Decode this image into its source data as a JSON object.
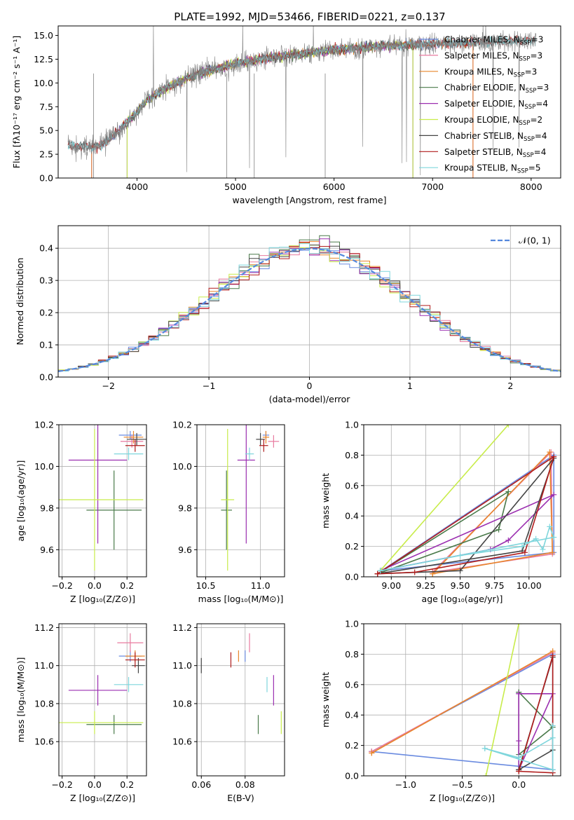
{
  "figure_title": "PLATE=1992, MJD=53466, FIBERID=0221, z=0.137",
  "colors": {
    "chabrier_miles": "#6a8be0",
    "salpeter_miles": "#e87a9f",
    "kroupa_miles": "#e8862c",
    "chabrier_elodie": "#4a7a4a",
    "salpeter_elodie": "#9b2fb0",
    "kroupa_elodie": "#c8ec4a",
    "chabrier_stelib": "#444444",
    "salpeter_stelib": "#b01c1c",
    "kroupa_stelib": "#7fd6dc",
    "data_spectrum": "#808080",
    "normal_curve": "#5588dd",
    "grid": "#b0b0b0"
  },
  "chart_data": [
    {
      "id": "spectrum",
      "type": "line",
      "xlabel": "wavelength [Angstrom, rest frame]",
      "ylabel": "Flux [fλ10⁻¹⁷ erg cm⁻² s⁻¹ A⁻¹]",
      "xlim": [
        3200,
        8300
      ],
      "ylim": [
        0,
        16
      ],
      "xticks": [
        4000,
        5000,
        6000,
        7000,
        8000
      ],
      "yticks": [
        0.0,
        2.5,
        5.0,
        7.5,
        10.0,
        12.5,
        15.0
      ],
      "grid": false,
      "legend_position": "top-right",
      "legend": [
        "Chabrier MILES, N_SSP=3",
        "Salpeter MILES, N_SSP=3",
        "Kroupa MILES, N_SSP=3",
        "Chabrier ELODIE, N_SSP=3",
        "Salpeter ELODIE, N_SSP=4",
        "Kroupa ELODIE, N_SSP=2",
        "Chabrier STELIB, N_SSP=4",
        "Salpeter STELIB, N_SSP=4",
        "Kroupa STELIB, N_SSP=5"
      ],
      "continuum": {
        "x": [
          3300,
          3600,
          3800,
          4000,
          4100,
          4300,
          4500,
          4700,
          5000,
          5300,
          5600,
          6000,
          6500,
          7000,
          7500,
          8000
        ],
        "y": [
          3.4,
          3.2,
          4.8,
          7.0,
          8.2,
          9.5,
          10.5,
          11.2,
          12.0,
          12.6,
          13.0,
          13.5,
          13.9,
          14.1,
          14.3,
          14.5
        ]
      }
    },
    {
      "id": "residual_histogram",
      "type": "area",
      "xlabel": "(data-model)/error",
      "ylabel": "Normed distribution",
      "xlim": [
        -2.5,
        2.5
      ],
      "ylim": [
        0,
        0.47
      ],
      "xticks": [
        -2,
        -1,
        0,
        1,
        2
      ],
      "yticks": [
        0.0,
        0.1,
        0.2,
        0.3,
        0.4
      ],
      "grid": true,
      "legend_position": "top-right",
      "legend": [
        "𝒩(0, 1)"
      ],
      "bin_width": 0.1
    },
    {
      "id": "age_vs_Z",
      "type": "scatter",
      "xlabel": "Z [log₁₀(Z/Z⊙)]",
      "ylabel": "age  [log₁₀(age/yr)]",
      "xlim": [
        -0.22,
        0.32
      ],
      "ylim": [
        9.47,
        10.2
      ],
      "xticks": [
        -0.2,
        0.0,
        0.2
      ],
      "yticks": [
        9.6,
        9.8,
        10.0,
        10.2
      ],
      "grid": true,
      "points": [
        {
          "s": "chabrier_miles",
          "x": 0.22,
          "xe": 0.07,
          "y": 10.15,
          "ye": 0.02
        },
        {
          "s": "salpeter_miles",
          "x": 0.23,
          "xe": 0.07,
          "y": 10.12,
          "ye": 0.03
        },
        {
          "s": "kroupa_miles",
          "x": 0.24,
          "xe": 0.06,
          "y": 10.14,
          "ye": 0.03
        },
        {
          "s": "chabrier_elodie",
          "x": 0.12,
          "xe": 0.17,
          "y": 9.79,
          "ye": 0.19
        },
        {
          "s": "salpeter_elodie",
          "x": 0.02,
          "xe": 0.18,
          "y": 10.03,
          "ye": 0.4
        },
        {
          "s": "kroupa_elodie",
          "x": 0.0,
          "xe": 0.3,
          "y": 9.84,
          "ye": 0.34
        },
        {
          "s": "chabrier_stelib",
          "x": 0.26,
          "xe": 0.06,
          "y": 10.13,
          "ye": 0.03
        },
        {
          "s": "salpeter_stelib",
          "x": 0.25,
          "xe": 0.06,
          "y": 10.1,
          "ye": 0.03
        },
        {
          "s": "kroupa_stelib",
          "x": 0.21,
          "xe": 0.09,
          "y": 10.06,
          "ye": 0.03
        }
      ]
    },
    {
      "id": "age_vs_mass",
      "type": "scatter",
      "xlabel": "mass [log₁₀(M/M⊙)]",
      "ylabel": "",
      "xlim": [
        10.42,
        11.22
      ],
      "ylim": [
        9.47,
        10.2
      ],
      "xticks": [
        10.5,
        11.0
      ],
      "yticks": [
        9.6,
        9.8,
        10.0,
        10.2
      ],
      "grid": true,
      "points": [
        {
          "s": "chabrier_miles",
          "x": 11.05,
          "xe": 0.03,
          "y": 10.15,
          "ye": 0.02
        },
        {
          "s": "salpeter_miles",
          "x": 11.12,
          "xe": 0.05,
          "y": 10.12,
          "ye": 0.03
        },
        {
          "s": "kroupa_miles",
          "x": 11.05,
          "xe": 0.03,
          "y": 10.14,
          "ye": 0.03
        },
        {
          "s": "chabrier_elodie",
          "x": 10.69,
          "xe": 0.05,
          "y": 9.79,
          "ye": 0.19
        },
        {
          "s": "salpeter_elodie",
          "x": 10.87,
          "xe": 0.08,
          "y": 10.03,
          "ye": 0.4
        },
        {
          "s": "kroupa_elodie",
          "x": 10.7,
          "xe": 0.06,
          "y": 9.84,
          "ye": 0.34
        },
        {
          "s": "chabrier_stelib",
          "x": 11.0,
          "xe": 0.04,
          "y": 10.13,
          "ye": 0.03
        },
        {
          "s": "salpeter_stelib",
          "x": 11.03,
          "xe": 0.04,
          "y": 10.1,
          "ye": 0.03
        },
        {
          "s": "kroupa_stelib",
          "x": 10.9,
          "xe": 0.04,
          "y": 10.06,
          "ye": 0.03
        }
      ]
    },
    {
      "id": "massweight_vs_age",
      "type": "line",
      "xlabel": "age  [log₁₀(age/yr)]",
      "ylabel": "mass weight",
      "xlim": [
        8.8,
        10.23
      ],
      "ylim": [
        0,
        1
      ],
      "xticks": [
        9.0,
        9.25,
        9.5,
        9.75,
        10.0
      ],
      "yticks": [
        0.0,
        0.2,
        0.4,
        0.6,
        0.8,
        1.0
      ],
      "grid": true,
      "series": [
        {
          "s": "chabrier_miles",
          "x": [
            8.93,
            10.18,
            10.18,
            8.93
          ],
          "y": [
            0.04,
            0.8,
            0.16,
            0.04
          ]
        },
        {
          "s": "salpeter_miles",
          "x": [
            9.3,
            10.16,
            10.17,
            9.3
          ],
          "y": [
            0.03,
            0.82,
            0.15,
            0.03
          ]
        },
        {
          "s": "kroupa_miles",
          "x": [
            9.3,
            10.15,
            10.17,
            9.3
          ],
          "y": [
            0.02,
            0.82,
            0.16,
            0.02
          ]
        },
        {
          "s": "chabrier_elodie",
          "x": [
            8.9,
            9.78,
            9.85,
            8.9
          ],
          "y": [
            0.02,
            0.31,
            0.56,
            0.02
          ]
        },
        {
          "s": "salpeter_elodie",
          "x": [
            8.92,
            9.72,
            9.85,
            10.18,
            8.92
          ],
          "y": [
            0.04,
            0.18,
            0.24,
            0.54,
            0.04
          ]
        },
        {
          "s": "kroupa_elodie",
          "x": [
            8.92,
            9.85,
            8.92
          ],
          "y": [
            0.04,
            1.0,
            0.04
          ]
        },
        {
          "s": "chabrier_stelib",
          "x": [
            8.9,
            9.95,
            10.18,
            9.5,
            8.9
          ],
          "y": [
            0.02,
            0.17,
            0.78,
            0.04,
            0.02
          ]
        },
        {
          "s": "salpeter_stelib",
          "x": [
            8.9,
            9.17,
            9.97,
            10.18,
            8.9
          ],
          "y": [
            0.02,
            0.03,
            0.16,
            0.79,
            0.02
          ]
        },
        {
          "s": "kroupa_stelib",
          "x": [
            8.92,
            9.5,
            9.95,
            10.05,
            10.1,
            10.15,
            10.18,
            8.92
          ],
          "y": [
            0.04,
            0.14,
            0.2,
            0.25,
            0.18,
            0.33,
            0.26,
            0.04
          ]
        }
      ]
    },
    {
      "id": "mass_vs_Z",
      "type": "scatter",
      "xlabel": "Z [log₁₀(Z/Z⊙)]",
      "ylabel": "mass [log₁₀(M/M⊙)]",
      "xlim": [
        -0.22,
        0.32
      ],
      "ylim": [
        10.42,
        11.22
      ],
      "xticks": [
        -0.2,
        0.0,
        0.2
      ],
      "yticks": [
        10.6,
        10.8,
        11.0,
        11.2
      ],
      "grid": true,
      "points": [
        {
          "s": "chabrier_miles",
          "x": 0.22,
          "xe": 0.07,
          "y": 11.05,
          "ye": 0.03
        },
        {
          "s": "salpeter_miles",
          "x": 0.22,
          "xe": 0.08,
          "y": 11.12,
          "ye": 0.05
        },
        {
          "s": "kroupa_miles",
          "x": 0.25,
          "xe": 0.06,
          "y": 11.05,
          "ye": 0.03
        },
        {
          "s": "chabrier_elodie",
          "x": 0.12,
          "xe": 0.17,
          "y": 10.69,
          "ye": 0.05
        },
        {
          "s": "salpeter_elodie",
          "x": 0.02,
          "xe": 0.18,
          "y": 10.87,
          "ye": 0.08
        },
        {
          "s": "kroupa_elodie",
          "x": 0.0,
          "xe": 0.3,
          "y": 10.7,
          "ye": 0.06
        },
        {
          "s": "chabrier_stelib",
          "x": 0.27,
          "xe": 0.04,
          "y": 11.0,
          "ye": 0.04
        },
        {
          "s": "salpeter_stelib",
          "x": 0.25,
          "xe": 0.06,
          "y": 11.03,
          "ye": 0.04
        },
        {
          "s": "kroupa_stelib",
          "x": 0.21,
          "xe": 0.09,
          "y": 10.9,
          "ye": 0.04
        }
      ]
    },
    {
      "id": "mass_vs_ebv",
      "type": "scatter",
      "xlabel": "E(B-V)",
      "ylabel": "",
      "xlim": [
        0.058,
        0.098
      ],
      "ylim": [
        10.42,
        11.22
      ],
      "xticks": [
        0.06,
        0.08
      ],
      "yticks": [
        10.6,
        10.8,
        11.0,
        11.2
      ],
      "grid": true,
      "points": [
        {
          "s": "chabrier_miles",
          "x": 0.08,
          "xe": 0,
          "y": 11.05,
          "ye": 0.03
        },
        {
          "s": "salpeter_miles",
          "x": 0.082,
          "xe": 0,
          "y": 11.12,
          "ye": 0.05
        },
        {
          "s": "kroupa_miles",
          "x": 0.077,
          "xe": 0,
          "y": 11.05,
          "ye": 0.03
        },
        {
          "s": "chabrier_elodie",
          "x": 0.086,
          "xe": 0,
          "y": 10.69,
          "ye": 0.05
        },
        {
          "s": "salpeter_elodie",
          "x": 0.093,
          "xe": 0,
          "y": 10.87,
          "ye": 0.08
        },
        {
          "s": "kroupa_elodie",
          "x": 0.0965,
          "xe": 0,
          "y": 10.7,
          "ye": 0.06
        },
        {
          "s": "chabrier_stelib",
          "x": 0.06,
          "xe": 0,
          "y": 11.0,
          "ye": 0.04
        },
        {
          "s": "salpeter_stelib",
          "x": 0.0735,
          "xe": 0,
          "y": 11.03,
          "ye": 0.04
        },
        {
          "s": "kroupa_stelib",
          "x": 0.09,
          "xe": 0,
          "y": 10.9,
          "ye": 0.04
        }
      ]
    },
    {
      "id": "massweight_vs_Z",
      "type": "line",
      "xlabel": "Z [log₁₀(Z/Z⊙)]",
      "ylabel": "mass weight",
      "xlim": [
        -1.37,
        0.37
      ],
      "ylim": [
        0,
        1
      ],
      "xticks": [
        -1.0,
        -0.5,
        0.0
      ],
      "yticks": [
        0.0,
        0.2,
        0.4,
        0.6,
        0.8,
        1.0
      ],
      "grid": true,
      "series": [
        {
          "s": "chabrier_miles",
          "x": [
            -1.3,
            0.3,
            0.3,
            -1.3
          ],
          "y": [
            0.16,
            0.8,
            0.04,
            0.16
          ]
        },
        {
          "s": "salpeter_miles",
          "x": [
            -1.3,
            0.3,
            -1.3
          ],
          "y": [
            0.16,
            0.81,
            0.16
          ]
        },
        {
          "s": "kroupa_miles",
          "x": [
            -1.3,
            0.3,
            -1.3
          ],
          "y": [
            0.15,
            0.82,
            0.15
          ]
        },
        {
          "s": "chabrier_elodie",
          "x": [
            0.0,
            0.3,
            0.0,
            0.0
          ],
          "y": [
            0.55,
            0.32,
            0.14,
            0.55
          ]
        },
        {
          "s": "salpeter_elodie",
          "x": [
            0.0,
            0.0,
            0.0,
            0.3,
            0.0
          ],
          "y": [
            0.54,
            0.23,
            0.04,
            0.54,
            0.54
          ]
        },
        {
          "s": "kroupa_elodie",
          "x": [
            -0.29,
            0.0,
            -0.29
          ],
          "y": [
            0.0,
            1.0,
            0.0
          ]
        },
        {
          "s": "chabrier_stelib",
          "x": [
            0.0,
            0.3,
            0.3,
            0.0
          ],
          "y": [
            0.04,
            0.78,
            0.17,
            0.04
          ]
        },
        {
          "s": "salpeter_stelib",
          "x": [
            0.0,
            0.3,
            0.3,
            0.0
          ],
          "y": [
            0.03,
            0.79,
            0.02,
            0.03
          ]
        },
        {
          "s": "kroupa_stelib",
          "x": [
            -0.3,
            0.3,
            0.3,
            0.3,
            0.0,
            -0.3
          ],
          "y": [
            0.18,
            0.04,
            0.33,
            0.25,
            0.12,
            0.18
          ]
        }
      ]
    }
  ]
}
